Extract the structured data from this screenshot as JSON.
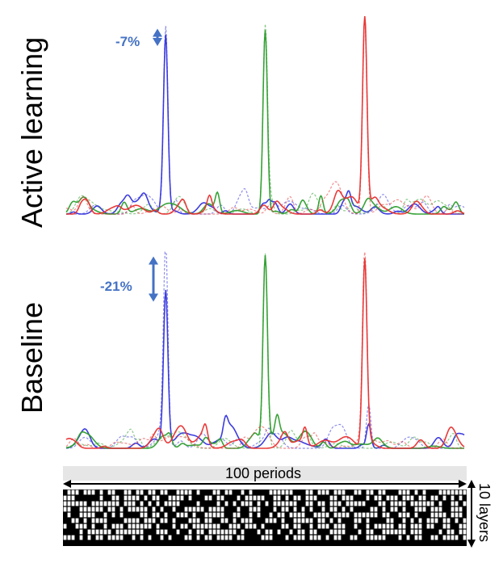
{
  "chart_data": [
    {
      "type": "line",
      "panel_label": "Active learning",
      "xlim": [
        0,
        100
      ],
      "ylim": [
        0,
        1
      ],
      "annotation": {
        "text": "-7%",
        "series": "blue-target",
        "from": 0.93,
        "to": 0.86
      },
      "series": [
        {
          "color": "#3333dd",
          "style": "solid",
          "peaks": [
            [
              25,
              0.86
            ],
            [
              51,
              0.05
            ],
            [
              71,
              0.08
            ]
          ],
          "baseline": 0.02
        },
        {
          "color": "#3333dd",
          "style": "dashed",
          "peaks": [
            [
              25,
              0.93
            ]
          ],
          "baseline": 0.02
        },
        {
          "color": "#2e9e2e",
          "style": "solid",
          "peaks": [
            [
              50,
              0.91
            ],
            [
              38,
              0.1
            ],
            [
              64,
              0.09
            ]
          ],
          "baseline": 0.02
        },
        {
          "color": "#2e9e2e",
          "style": "dashed",
          "peaks": [
            [
              50,
              0.91
            ]
          ],
          "baseline": 0.02
        },
        {
          "color": "#e83030",
          "style": "solid",
          "peaks": [
            [
              75,
              0.97
            ],
            [
              36,
              0.06
            ]
          ],
          "baseline": 0.02
        },
        {
          "color": "#e83030",
          "style": "dashed",
          "peaks": [
            [
              75,
              0.97
            ]
          ],
          "baseline": 0.02
        }
      ]
    },
    {
      "type": "line",
      "panel_label": "Baseline",
      "xlim": [
        0,
        100
      ],
      "ylim": [
        0,
        1
      ],
      "annotation": {
        "text": "-21%",
        "series": "blue-target",
        "from": 0.97,
        "to": 0.76
      },
      "series": [
        {
          "color": "#3333dd",
          "style": "solid",
          "peaks": [
            [
              25,
              0.76
            ],
            [
              40,
              0.08
            ],
            [
              76,
              0.12
            ]
          ],
          "baseline": 0.02
        },
        {
          "color": "#3333dd",
          "style": "dashed",
          "peaks": [
            [
              25,
              0.97
            ],
            [
              76,
              0.22
            ]
          ],
          "baseline": 0.02
        },
        {
          "color": "#2e9e2e",
          "style": "solid",
          "peaks": [
            [
              50,
              0.92
            ],
            [
              26,
              0.04
            ],
            [
              53,
              0.1
            ]
          ],
          "baseline": 0.02
        },
        {
          "color": "#2e9e2e",
          "style": "dashed",
          "peaks": [
            [
              50,
              0.96
            ]
          ],
          "baseline": 0.02
        },
        {
          "color": "#e83030",
          "style": "solid",
          "peaks": [
            [
              75,
              0.93
            ],
            [
              35,
              0.07
            ],
            [
              60,
              0.08
            ]
          ],
          "baseline": 0.02
        },
        {
          "color": "#e83030",
          "style": "dashed",
          "peaks": [
            [
              75,
              0.95
            ]
          ],
          "baseline": 0.02
        }
      ]
    }
  ],
  "structure": {
    "periods_label": "100 periods",
    "layers_label": "10 layers",
    "periods": 100,
    "layers": 10,
    "colors": {
      "filled": "#000000",
      "empty": "#ffffff",
      "band": "#e6e6e6"
    }
  }
}
